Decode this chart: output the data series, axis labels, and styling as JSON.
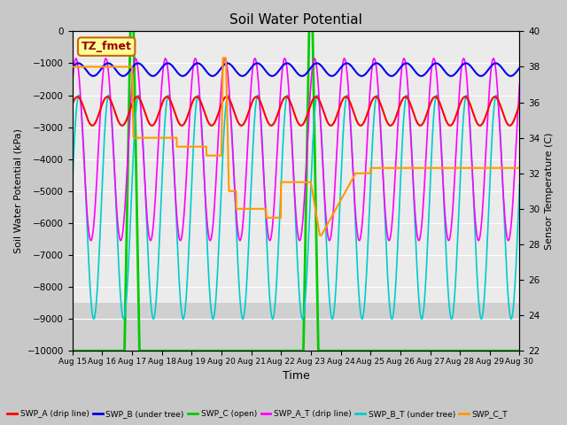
{
  "title": "Soil Water Potential",
  "xlabel": "Time",
  "ylabel_left": "Soil Water Potential (kPa)",
  "ylabel_right": "Sensor Temperature (C)",
  "ylim_left": [
    -10000,
    0
  ],
  "ylim_right": [
    22,
    40
  ],
  "yticks_left": [
    0,
    -1000,
    -2000,
    -3000,
    -4000,
    -5000,
    -6000,
    -7000,
    -8000,
    -9000,
    -10000
  ],
  "yticks_right": [
    22,
    24,
    26,
    28,
    30,
    32,
    34,
    36,
    38,
    40
  ],
  "xtick_labels": [
    "Aug 15",
    "Aug 16",
    "Aug 17",
    "Aug 18",
    "Aug 19",
    "Aug 20",
    "Aug 21",
    "Aug 22",
    "Aug 23",
    "Aug 24",
    "Aug 25",
    "Aug 26",
    "Aug 27",
    "Aug 28",
    "Aug 29",
    "Aug 30"
  ],
  "annotation_text": "TZ_fmet",
  "annotation_facecolor": "#ffff99",
  "annotation_edgecolor": "#cc6600",
  "annotation_textcolor": "#990000",
  "fig_facecolor": "#c8c8c8",
  "plot_facecolor": "#e8e8e8",
  "upper_strip_facecolor": "#f0f0f0",
  "lower_strip_facecolor": "#d8d8d8",
  "grid_color": "#ffffff",
  "colors": {
    "SWP_A": "#ff0000",
    "SWP_B": "#0000ee",
    "SWP_C": "#00cc00",
    "SWP_A_T": "#ff00ff",
    "SWP_B_T": "#00cccc",
    "SWP_C_T": "#ff9900"
  },
  "legend_labels": {
    "SWP_A": "SWP_A (drip line)",
    "SWP_B": "SWP_B (under tree)",
    "SWP_C": "SWP_C (open)",
    "SWP_A_T": "SWP_A_T (drip line)",
    "SWP_B_T": "SWP_B_T (under tree)",
    "SWP_C_T": "SWP_C_T"
  }
}
